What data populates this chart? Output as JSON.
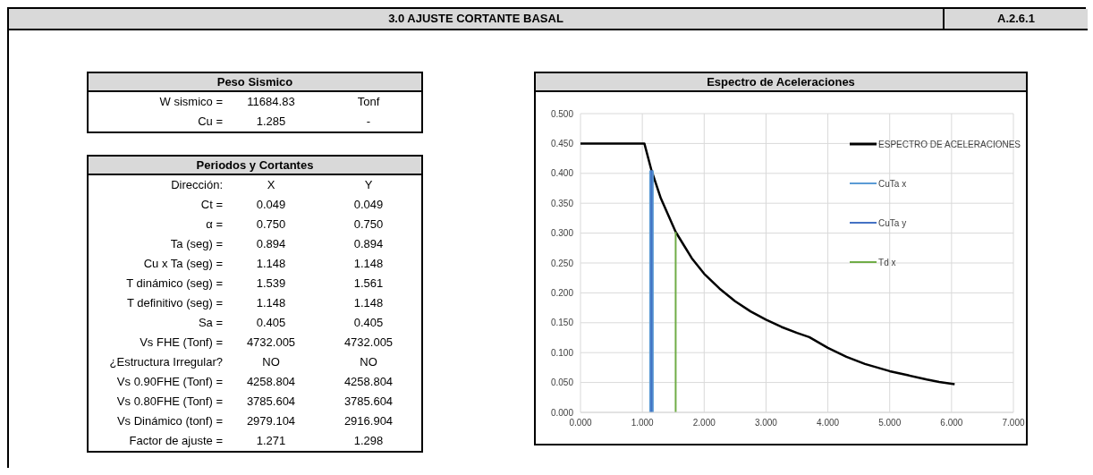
{
  "chart_data": [
    {
      "type": "other",
      "title": "3.0 AJUSTE CORTANTE BASAL",
      "annotations": [
        "A.2.6.1"
      ]
    },
    {
      "type": "other",
      "title": "Peso Sismico",
      "annotations": [
        "W sismico =",
        "11684.83",
        "Tonf",
        "Cu =",
        "1.285",
        "-"
      ]
    },
    {
      "type": "other",
      "title": "Periodos y Cortantes",
      "annotations": [
        "Dirección:",
        "X",
        "Y",
        "Ct =",
        "0.049",
        "0.049",
        "α =",
        "0.750",
        "0.750",
        "Ta (seg) =",
        "0.894",
        "0.894",
        "Cu x Ta (seg) =",
        "1.148",
        "1.148",
        "T dinámico (seg) =",
        "1.539",
        "1.561",
        "T definitivo (seg) =",
        "1.148",
        "1.148",
        "Sa =",
        "0.405",
        "0.405",
        "Vs  FHE (Tonf) =",
        "4732.005",
        "4732.005",
        "¿Estructura Irregular?",
        "NO",
        "NO",
        "Vs  0.90FHE (Tonf) =",
        "4258.804",
        "4258.804",
        "Vs  0.80FHE (Tonf) =",
        "3785.604",
        "3785.604",
        "Vs Dinámico (tonf) =",
        "2979.104",
        "2916.904",
        "Factor de ajuste =",
        "1.271",
        "1.298"
      ]
    },
    {
      "type": "line",
      "title": "Espectro de Aceleraciones",
      "xlim": [
        0,
        7
      ],
      "ylim": [
        0,
        0.5
      ],
      "xticks": [
        {
          "value": 0,
          "label": "0.000"
        },
        {
          "value": 1,
          "label": "1.000"
        },
        {
          "value": 2,
          "label": "2.000"
        },
        {
          "value": 3,
          "label": "3.000"
        },
        {
          "value": 4,
          "label": "4.000"
        },
        {
          "value": 5,
          "label": "5.000"
        },
        {
          "value": 6,
          "label": "6.000"
        },
        {
          "value": 7,
          "label": "7.000"
        }
      ],
      "yticks": [
        {
          "value": 0,
          "label": "0.000"
        },
        {
          "value": 0.05,
          "label": "0.050"
        },
        {
          "value": 0.1,
          "label": "0.100"
        },
        {
          "value": 0.15,
          "label": "0.150"
        },
        {
          "value": 0.2,
          "label": "0.200"
        },
        {
          "value": 0.25,
          "label": "0.250"
        },
        {
          "value": 0.3,
          "label": "0.300"
        },
        {
          "value": 0.35,
          "label": "0.350"
        },
        {
          "value": 0.4,
          "label": "0.400"
        },
        {
          "value": 0.45,
          "label": "0.450"
        },
        {
          "value": 0.5,
          "label": "0.500"
        }
      ],
      "grid": true,
      "legend": "top right",
      "marker": "none",
      "series": [
        {
          "name": "ESPECTRO DE ACELERACIONES",
          "color": "#000000",
          "x": [
            0,
            1.033,
            1.148,
            1.3,
            1.539,
            1.8,
            2.0,
            2.25,
            2.5,
            2.75,
            3.0,
            3.25,
            3.5,
            3.7,
            4.0,
            4.3,
            4.6,
            4.8,
            5.0,
            5.3,
            5.6,
            5.8,
            6.05
          ],
          "values": [
            0.45,
            0.45,
            0.405,
            0.358,
            0.302,
            0.258,
            0.232,
            0.207,
            0.186,
            0.169,
            0.155,
            0.143,
            0.133,
            0.126,
            0.108,
            0.093,
            0.081,
            0.075,
            0.069,
            0.062,
            0.055,
            0.051,
            0.047
          ]
        },
        {
          "name": "CuTa x",
          "color": "#5b9bd5",
          "x": [
            1.148,
            1.148
          ],
          "values": [
            0,
            0.405
          ]
        },
        {
          "name": "CuTa y",
          "color": "#4472c4",
          "x": [
            1.148,
            1.148
          ],
          "values": [
            0,
            0.405
          ]
        },
        {
          "name": "Td x",
          "color": "#70ad47",
          "x": [
            1.539,
            1.539
          ],
          "values": [
            0,
            0.302
          ]
        }
      ]
    }
  ]
}
